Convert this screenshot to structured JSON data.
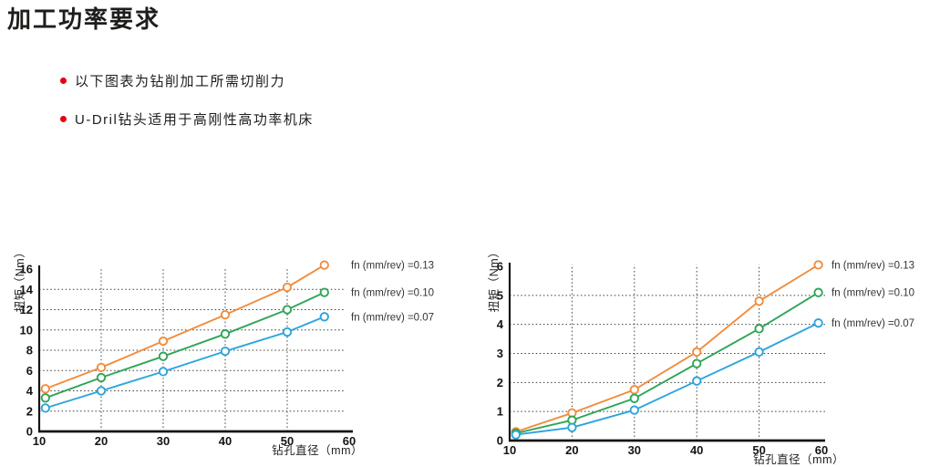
{
  "page": {
    "title": "加工功率要求",
    "bullets": [
      "以下图表为钻削加工所需切削力",
      "U-Dril钻头适用于高刚性高功率机床"
    ],
    "bullet_color": "#e60012"
  },
  "colors": {
    "orange": "#F28C3C",
    "green": "#2FA557",
    "blue": "#2BA4DE",
    "axis": "#141414",
    "grid": "#3c3c3c",
    "text": "#1d1d1b"
  },
  "chart_data": [
    {
      "type": "line",
      "title": "",
      "ylabel": "扭矩（Nm）",
      "xlabel": "钻孔直径（mm）",
      "xlim": [
        10,
        60
      ],
      "ylim": [
        0,
        16
      ],
      "x_ticks": [
        10,
        20,
        30,
        40,
        50,
        60
      ],
      "y_ticks": [
        0,
        2,
        4,
        6,
        8,
        10,
        12,
        14,
        16
      ],
      "grid": "dotted",
      "legend_position": "right-of-line-ends",
      "series": [
        {
          "name": "fn (mm/rev) =0.13",
          "color_key": "orange",
          "x": [
            11,
            20,
            30,
            40,
            50,
            56
          ],
          "y": [
            4.2,
            6.3,
            8.9,
            11.5,
            14.2,
            16.4
          ]
        },
        {
          "name": "fn (mm/rev) =0.10",
          "color_key": "green",
          "x": [
            11,
            20,
            30,
            40,
            50,
            56
          ],
          "y": [
            3.3,
            5.3,
            7.4,
            9.6,
            12.0,
            13.7
          ]
        },
        {
          "name": "fn (mm/rev) =0.07",
          "color_key": "blue",
          "x": [
            11,
            20,
            30,
            40,
            50,
            56
          ],
          "y": [
            2.3,
            4.0,
            5.9,
            7.9,
            9.8,
            11.3
          ]
        }
      ]
    },
    {
      "type": "line",
      "title": "",
      "ylabel": "扭矩（Nm）",
      "xlabel": "钻孔直径（mm）",
      "xlim": [
        10,
        60
      ],
      "ylim": [
        0,
        6
      ],
      "x_ticks": [
        10,
        20,
        30,
        40,
        50,
        60
      ],
      "y_ticks": [
        0,
        1,
        2,
        3,
        4,
        5,
        6
      ],
      "grid": "dotted",
      "legend_position": "right-of-line-ends",
      "series": [
        {
          "name": "fn (mm/rev) =0.13",
          "color_key": "orange",
          "x": [
            11,
            20,
            30,
            40,
            50,
            59.5
          ],
          "y": [
            0.3,
            0.95,
            1.75,
            3.05,
            4.8,
            6.05
          ]
        },
        {
          "name": "fn (mm/rev) =0.10",
          "color_key": "green",
          "x": [
            11,
            20,
            30,
            40,
            50,
            59.5
          ],
          "y": [
            0.25,
            0.7,
            1.45,
            2.65,
            3.85,
            5.1
          ]
        },
        {
          "name": "fn (mm/rev) =0.07",
          "color_key": "blue",
          "x": [
            11,
            20,
            30,
            40,
            50,
            59.5
          ],
          "y": [
            0.2,
            0.45,
            1.05,
            2.05,
            3.05,
            4.05
          ]
        }
      ]
    }
  ]
}
